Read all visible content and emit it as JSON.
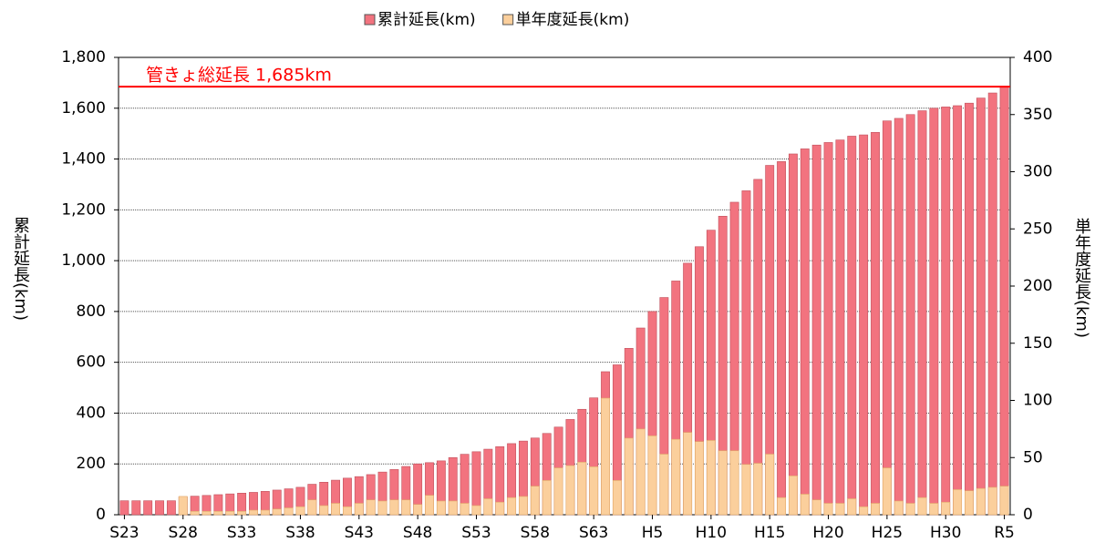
{
  "chart_data": {
    "type": "bar",
    "categories": [
      "S23",
      null,
      null,
      null,
      null,
      "S28",
      null,
      null,
      null,
      null,
      "S33",
      null,
      null,
      null,
      null,
      "S38",
      null,
      null,
      null,
      null,
      "S43",
      null,
      null,
      null,
      null,
      "S48",
      null,
      null,
      null,
      null,
      "S53",
      null,
      null,
      null,
      null,
      "S58",
      null,
      null,
      null,
      null,
      "S63",
      null,
      null,
      null,
      null,
      "H5",
      null,
      null,
      null,
      null,
      "H10",
      null,
      null,
      null,
      null,
      "H15",
      null,
      null,
      null,
      null,
      "H20",
      null,
      null,
      null,
      null,
      "H25",
      null,
      null,
      null,
      null,
      "H30",
      null,
      null,
      null,
      null,
      "R5"
    ],
    "series": [
      {
        "name": "累計延長(km)",
        "color": "#f2737f",
        "values": [
          55,
          55,
          55,
          55,
          55,
          70,
          73,
          76,
          79,
          82,
          85,
          88,
          92,
          97,
          102,
          108,
          120,
          128,
          136,
          144,
          150,
          158,
          168,
          178,
          190,
          200,
          205,
          212,
          225,
          238,
          248,
          258,
          268,
          280,
          290,
          302,
          320,
          345,
          375,
          415,
          460,
          563,
          590,
          655,
          735,
          800,
          855,
          920,
          990,
          1055,
          1120,
          1175,
          1230,
          1275,
          1320,
          1375,
          1390,
          1420,
          1440,
          1455,
          1465,
          1475,
          1490,
          1495,
          1505,
          1550,
          1560,
          1575,
          1590,
          1600,
          1605,
          1610,
          1620,
          1640,
          1660,
          1685
        ]
      },
      {
        "name": "単年度延長(km)",
        "color": "#fbcf9c",
        "axis": "y2",
        "values": [
          0,
          0,
          0,
          0,
          0,
          16,
          3,
          3,
          3,
          3,
          3,
          4,
          4,
          5,
          6,
          7,
          13,
          8,
          10,
          7,
          10,
          13,
          12,
          13,
          13,
          9,
          17,
          12,
          12,
          10,
          8,
          14,
          11,
          15,
          16,
          25,
          30,
          41,
          43,
          46,
          42,
          102,
          30,
          67,
          75,
          69,
          53,
          66,
          72,
          64,
          65,
          56,
          56,
          44,
          45,
          53,
          15,
          34,
          18,
          13,
          10,
          10,
          14,
          7,
          10,
          41,
          12,
          10,
          15,
          10,
          11,
          22,
          21,
          23,
          24,
          25
        ]
      }
    ],
    "ylabel": "累計延長(km)",
    "y2label": "単年度延長(km)",
    "ylim": [
      0,
      1800
    ],
    "yticks": [
      0,
      200,
      400,
      600,
      800,
      {
        "value": 1000,
        "label": "1,000"
      },
      {
        "value": 1200,
        "label": "1,200"
      },
      {
        "value": 1400,
        "label": "1,400"
      },
      {
        "value": 1600,
        "label": "1,600"
      },
      {
        "value": 1800,
        "label": "1,800"
      }
    ],
    "y2lim": [
      0,
      400
    ],
    "y2ticks": [
      0,
      50,
      100,
      150,
      200,
      250,
      300,
      350,
      400
    ],
    "reference": {
      "value": 1685,
      "label": "管きょ総延長 1,685km",
      "color": "#ff0000"
    },
    "grid": true,
    "legend": "top"
  }
}
